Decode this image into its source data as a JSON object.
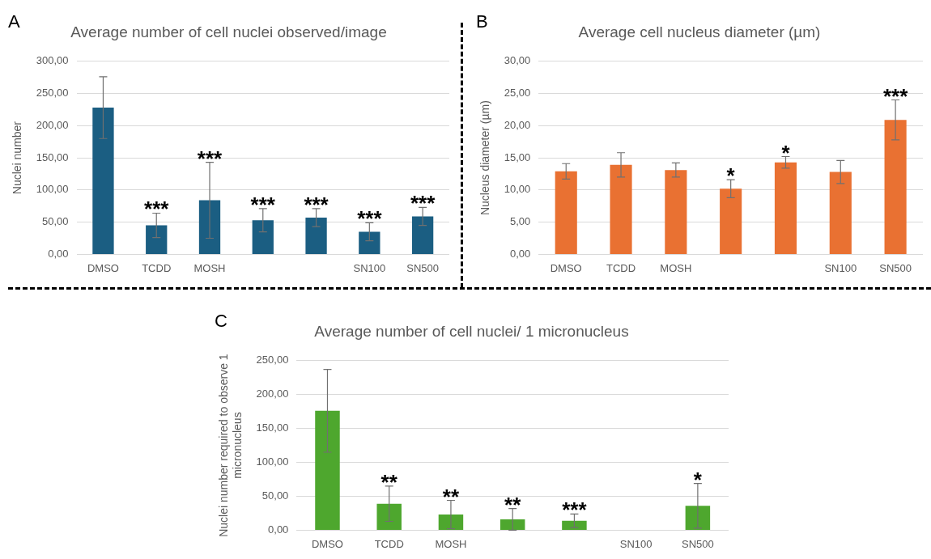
{
  "chart_data": [
    {
      "type": "bar",
      "title": "Average number of cell nuclei observed/image",
      "ylabel": "Nuclei number",
      "annotations": [
        "A"
      ],
      "categories": [
        "DMSO",
        "TCDD",
        "MOSH",
        null,
        null,
        "SN100",
        "SN500"
      ],
      "series": [
        {
          "color": "#1b5e82",
          "values": [
            228,
            45,
            84,
            53,
            57,
            35,
            59
          ],
          "errors": [
            48,
            19,
            59,
            18,
            14,
            14,
            14
          ],
          "value_labels": [
            null,
            "***",
            "***",
            "***",
            "***",
            "***",
            "***"
          ]
        }
      ],
      "ylim": [
        0,
        300
      ],
      "yticks": [
        {
          "value": 0,
          "label": "0,00"
        },
        {
          "value": 50,
          "label": "50,00"
        },
        {
          "value": 100,
          "label": "100,00"
        },
        {
          "value": 150,
          "label": "150,00"
        },
        {
          "value": 200,
          "label": "200,00"
        },
        {
          "value": 250,
          "label": "250,00"
        },
        {
          "value": 300,
          "label": "300,00"
        }
      ],
      "grid": "y",
      "legend": false
    },
    {
      "type": "bar",
      "title": "Average cell nucleus diameter (µm)",
      "ylabel": "Nucleus diameter (µm)",
      "annotations": [
        "B"
      ],
      "categories": [
        "DMSO",
        "TCDD",
        "MOSH",
        null,
        null,
        "SN100",
        "SN500"
      ],
      "series": [
        {
          "color": "#e97132",
          "values": [
            12.9,
            13.9,
            13.1,
            10.2,
            14.3,
            12.8,
            20.9
          ],
          "errors": [
            1.2,
            1.9,
            1.1,
            1.4,
            0.9,
            1.8,
            3.1
          ],
          "value_labels": [
            null,
            null,
            null,
            "*",
            "*",
            null,
            "***"
          ]
        }
      ],
      "ylim": [
        0,
        30
      ],
      "yticks": [
        {
          "value": 0,
          "label": "0,00"
        },
        {
          "value": 5,
          "label": "5,00"
        },
        {
          "value": 10,
          "label": "10,00"
        },
        {
          "value": 15,
          "label": "15,00"
        },
        {
          "value": 20,
          "label": "20,00"
        },
        {
          "value": 25,
          "label": "25,00"
        },
        {
          "value": 30,
          "label": "30,00"
        }
      ],
      "grid": "y",
      "legend": false
    },
    {
      "type": "bar",
      "title": "Average number of cell nuclei/ 1 micronucleus",
      "ylabel": "Nuclei number required to observe 1 micronucleus",
      "annotations": [
        "C"
      ],
      "categories": [
        "DMSO",
        "TCDD",
        "MOSH",
        null,
        null,
        "SN100",
        "SN500"
      ],
      "series": [
        {
          "color": "#4ea72e",
          "values": [
            176,
            39,
            23,
            16,
            14,
            null,
            36
          ],
          "errors": [
            61,
            26,
            21,
            16,
            10,
            null,
            33
          ],
          "value_labels": [
            null,
            "**",
            "**",
            "**",
            "***",
            null,
            "*"
          ]
        }
      ],
      "ylim": [
        0,
        250
      ],
      "yticks": [
        {
          "value": 0,
          "label": "0,00"
        },
        {
          "value": 50,
          "label": "50,00"
        },
        {
          "value": 100,
          "label": "100,00"
        },
        {
          "value": 150,
          "label": "150,00"
        },
        {
          "value": 200,
          "label": "200,00"
        },
        {
          "value": 250,
          "label": "250,00"
        }
      ],
      "grid": "y",
      "legend": false
    }
  ]
}
